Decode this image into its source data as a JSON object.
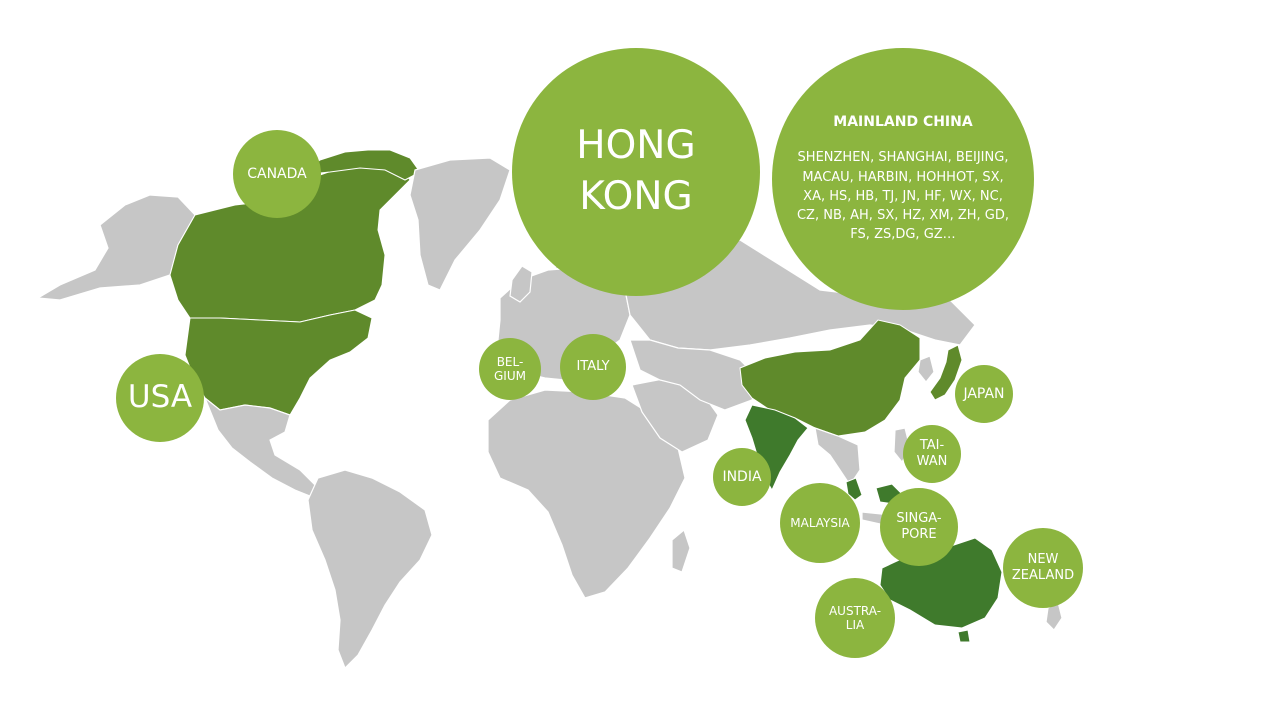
{
  "colors": {
    "bubble": "#8cb53f",
    "highlight_light": "#5f8a2b",
    "highlight_dark": "#3f7a2c",
    "land": "#c6c6c6",
    "background": "#ffffff"
  },
  "bubbles": {
    "canada": "CANADA",
    "usa": "USA",
    "belgium": [
      "BEL-",
      "GIUM"
    ],
    "italy": "ITALY",
    "hongkong": [
      "HONG",
      "KONG"
    ],
    "mainland_china": {
      "title": "MAINLAND CHINA",
      "cities": "SHENZHEN, SHANGHAI, BEIJING, MACAU, HARBIN, HOHHOT, SX, XA, HS, HB, TJ, JN, HF, WX, NC, CZ, NB, AH, SX, HZ, XM, ZH, GD, FS, ZS,DG, GZ…"
    },
    "japan": "JAPAN",
    "india": "INDIA",
    "taiwan": [
      "TAI-",
      "WAN"
    ],
    "malaysia": "MALAYSIA",
    "singapore": [
      "SINGA-",
      "PORE"
    ],
    "new_zealand": [
      "NEW",
      "ZEALAND"
    ],
    "australia": [
      "AUSTRA-",
      "LIA"
    ]
  }
}
